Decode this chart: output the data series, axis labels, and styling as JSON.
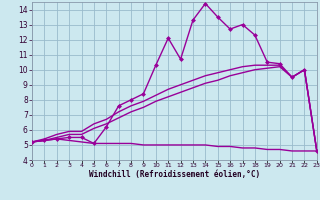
{
  "x_values": [
    0,
    1,
    2,
    3,
    4,
    5,
    6,
    7,
    8,
    9,
    10,
    11,
    12,
    13,
    14,
    15,
    16,
    17,
    18,
    19,
    20,
    21,
    22,
    23
  ],
  "line_main_y": [
    5.2,
    5.3,
    5.4,
    5.5,
    5.5,
    5.1,
    6.2,
    7.6,
    8.0,
    8.4,
    10.3,
    12.1,
    10.7,
    13.3,
    14.4,
    13.5,
    12.7,
    13.0,
    12.3,
    10.5,
    10.4,
    9.5,
    10.0,
    4.6
  ],
  "line_upper_y": [
    5.2,
    5.4,
    5.7,
    5.9,
    5.9,
    6.4,
    6.7,
    7.2,
    7.6,
    7.9,
    8.3,
    8.7,
    9.0,
    9.3,
    9.6,
    9.8,
    10.0,
    10.2,
    10.3,
    10.3,
    10.3,
    9.5,
    10.0,
    4.6
  ],
  "line_mid_y": [
    5.2,
    5.3,
    5.5,
    5.7,
    5.7,
    6.1,
    6.4,
    6.8,
    7.2,
    7.5,
    7.9,
    8.2,
    8.5,
    8.8,
    9.1,
    9.3,
    9.6,
    9.8,
    10.0,
    10.1,
    10.2,
    9.5,
    10.0,
    4.6
  ],
  "line_lower_y": [
    5.2,
    5.3,
    5.4,
    5.3,
    5.2,
    5.1,
    5.1,
    5.1,
    5.1,
    5.0,
    5.0,
    5.0,
    5.0,
    5.0,
    5.0,
    4.9,
    4.9,
    4.8,
    4.8,
    4.7,
    4.7,
    4.6,
    4.6,
    4.6
  ],
  "line_color": "#990099",
  "bg_color": "#cce8ef",
  "grid_color": "#99bbcc",
  "xlim": [
    0,
    23
  ],
  "ylim": [
    4.0,
    14.5
  ],
  "yticks": [
    4,
    5,
    6,
    7,
    8,
    9,
    10,
    11,
    12,
    13,
    14
  ],
  "xtick_labels": [
    "0",
    "1",
    "2",
    "3",
    "4",
    "5",
    "6",
    "7",
    "8",
    "9",
    "10",
    "11",
    "12",
    "13",
    "14",
    "15",
    "16",
    "17",
    "18",
    "19",
    "20",
    "21",
    "22",
    "23"
  ],
  "xlabel": "Windchill (Refroidissement éolien,°C)",
  "markersize": 2.5,
  "linewidth": 1.0
}
